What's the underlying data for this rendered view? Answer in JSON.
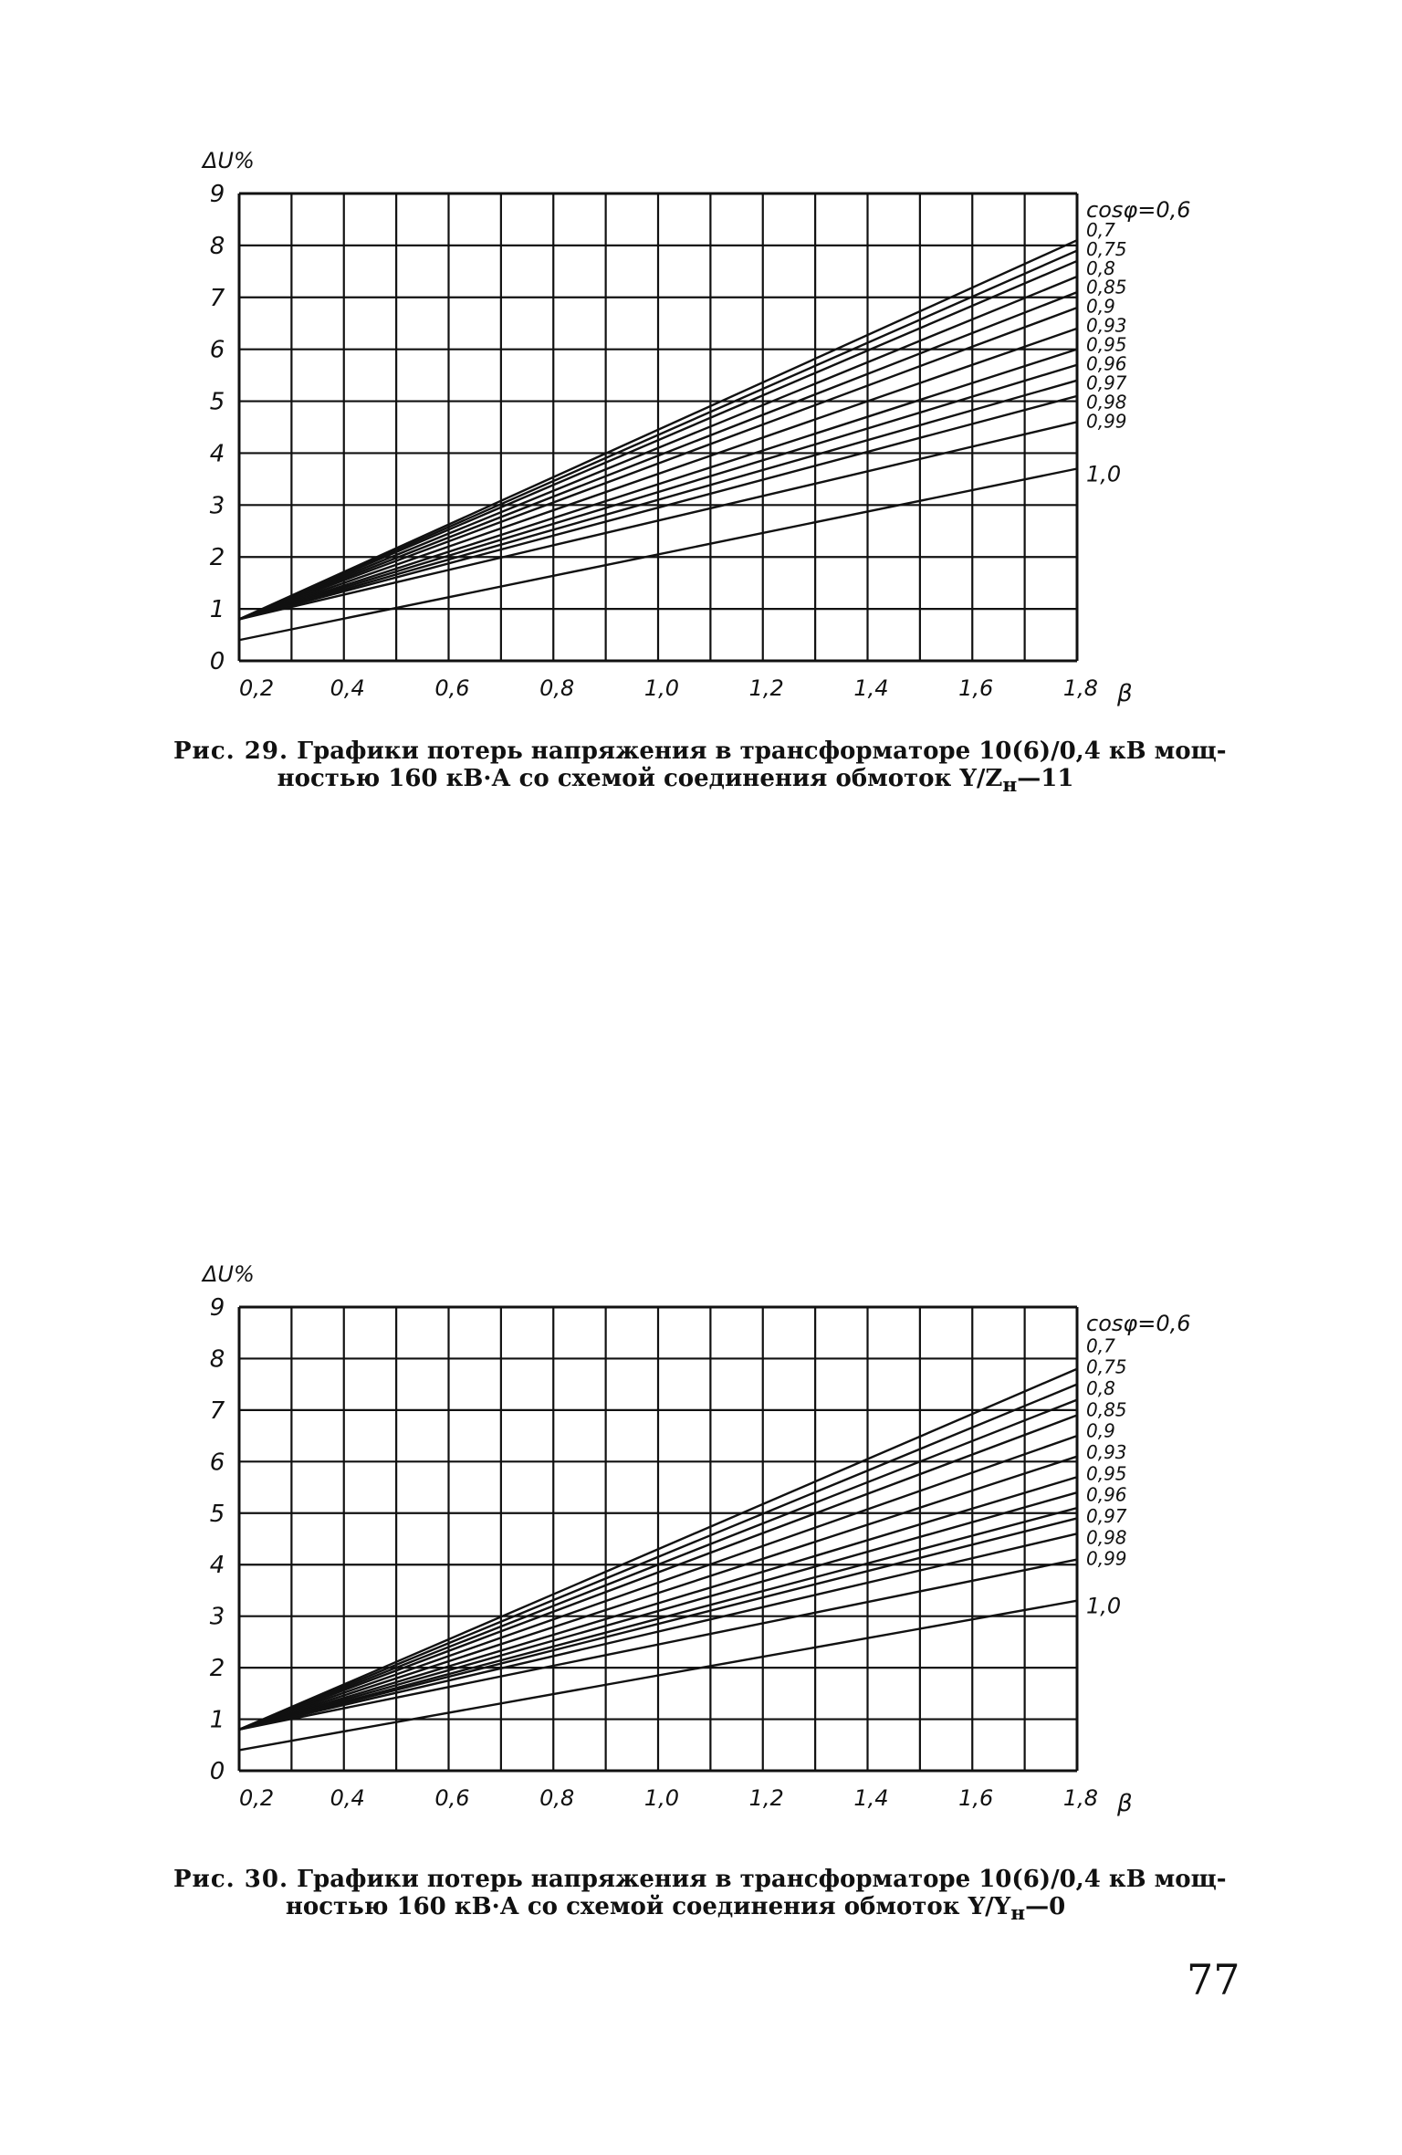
{
  "page": {
    "number": "77"
  },
  "chart_data": [
    {
      "type": "line",
      "ylabel": "ΔU%",
      "xlabel": "β",
      "xlim": [
        0.2,
        1.8
      ],
      "ylim": [
        0,
        9
      ],
      "x_ticks": [
        "0,2",
        "0,4",
        "0,6",
        "0,8",
        "1,0",
        "1,2",
        "1,4",
        "1,6",
        "1,8"
      ],
      "y_ticks": [
        "0",
        "1",
        "2",
        "3",
        "4",
        "5",
        "6",
        "7",
        "8",
        "9"
      ],
      "grid": true,
      "legend_title": "cosφ=",
      "series": [
        {
          "name": "0,6",
          "x": [
            0.2,
            1.8
          ],
          "y": [
            0.8,
            8.1
          ]
        },
        {
          "name": "0,7",
          "x": [
            0.2,
            1.8
          ],
          "y": [
            0.8,
            7.9
          ]
        },
        {
          "name": "0,75",
          "x": [
            0.2,
            1.8
          ],
          "y": [
            0.8,
            7.7
          ]
        },
        {
          "name": "0,8",
          "x": [
            0.2,
            1.8
          ],
          "y": [
            0.8,
            7.4
          ]
        },
        {
          "name": "0,85",
          "x": [
            0.2,
            1.8
          ],
          "y": [
            0.8,
            7.1
          ]
        },
        {
          "name": "0,9",
          "x": [
            0.2,
            1.8
          ],
          "y": [
            0.8,
            6.8
          ]
        },
        {
          "name": "0,93",
          "x": [
            0.2,
            1.8
          ],
          "y": [
            0.8,
            6.4
          ]
        },
        {
          "name": "0,95",
          "x": [
            0.2,
            1.8
          ],
          "y": [
            0.8,
            6.0
          ]
        },
        {
          "name": "0,96",
          "x": [
            0.2,
            1.8
          ],
          "y": [
            0.8,
            5.7
          ]
        },
        {
          "name": "0,97",
          "x": [
            0.2,
            1.8
          ],
          "y": [
            0.8,
            5.4
          ]
        },
        {
          "name": "0,98",
          "x": [
            0.2,
            1.8
          ],
          "y": [
            0.8,
            5.1
          ]
        },
        {
          "name": "0,99",
          "x": [
            0.2,
            1.8
          ],
          "y": [
            0.8,
            4.6
          ]
        },
        {
          "name": "1,0",
          "x": [
            0.2,
            1.8
          ],
          "y": [
            0.4,
            3.7
          ]
        }
      ],
      "caption": {
        "label": "Рис. 29.",
        "line1": "Графики потерь напряжения в трансформаторе 10(6)/0,4 кВ мощ-",
        "line2_text": "ностью 160 кВ·А со схемой соединения обмоток Y/Z",
        "line2_sub": "н",
        "line2_end": "—11"
      }
    },
    {
      "type": "line",
      "ylabel": "ΔU%",
      "xlabel": "β",
      "xlim": [
        0.2,
        1.8
      ],
      "ylim": [
        0,
        9
      ],
      "x_ticks": [
        "0,2",
        "0,4",
        "0,6",
        "0,8",
        "1,0",
        "1,2",
        "1,4",
        "1,6",
        "1,8"
      ],
      "y_ticks": [
        "0",
        "1",
        "2",
        "3",
        "4",
        "5",
        "6",
        "7",
        "8",
        "9"
      ],
      "grid": true,
      "legend_title": "cosφ=",
      "series": [
        {
          "name": "0,6",
          "x": [
            0.2,
            1.8
          ],
          "y": [
            0.8,
            7.8
          ]
        },
        {
          "name": "0,7",
          "x": [
            0.2,
            1.8
          ],
          "y": [
            0.8,
            7.5
          ]
        },
        {
          "name": "0,75",
          "x": [
            0.2,
            1.8
          ],
          "y": [
            0.8,
            7.2
          ]
        },
        {
          "name": "0,8",
          "x": [
            0.2,
            1.8
          ],
          "y": [
            0.8,
            6.9
          ]
        },
        {
          "name": "0,85",
          "x": [
            0.2,
            1.8
          ],
          "y": [
            0.8,
            6.5
          ]
        },
        {
          "name": "0,9",
          "x": [
            0.2,
            1.8
          ],
          "y": [
            0.8,
            6.1
          ]
        },
        {
          "name": "0,93",
          "x": [
            0.2,
            1.8
          ],
          "y": [
            0.8,
            5.7
          ]
        },
        {
          "name": "0,95",
          "x": [
            0.2,
            1.8
          ],
          "y": [
            0.8,
            5.4
          ]
        },
        {
          "name": "0,96",
          "x": [
            0.2,
            1.8
          ],
          "y": [
            0.8,
            5.1
          ]
        },
        {
          "name": "0,97",
          "x": [
            0.2,
            1.8
          ],
          "y": [
            0.8,
            4.9
          ]
        },
        {
          "name": "0,98",
          "x": [
            0.2,
            1.8
          ],
          "y": [
            0.8,
            4.6
          ]
        },
        {
          "name": "0,99",
          "x": [
            0.2,
            1.8
          ],
          "y": [
            0.8,
            4.1
          ]
        },
        {
          "name": "1,0",
          "x": [
            0.2,
            1.8
          ],
          "y": [
            0.4,
            3.3
          ]
        }
      ],
      "caption": {
        "label": "Рис. 30.",
        "line1": "Графики потерь напряжения в трансформаторе 10(6)/0,4 кВ мощ-",
        "line2_text": "ностью 160 кВ·А со схемой соединения обмоток Y/Y",
        "line2_sub": "н",
        "line2_end": "—0"
      }
    }
  ]
}
